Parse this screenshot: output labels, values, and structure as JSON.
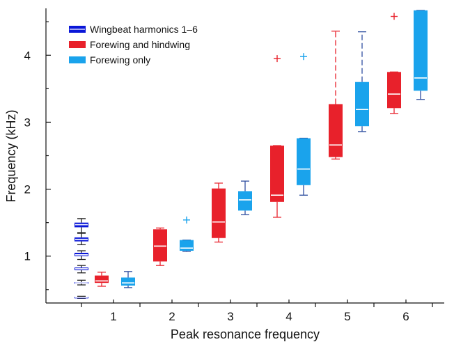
{
  "chart_data": {
    "type": "box",
    "xlabel": "Peak resonance frequency",
    "ylabel": "Frequency (kHz)",
    "ylim": [
      0.3,
      4.7
    ],
    "yticks": [
      1,
      2,
      3,
      4
    ],
    "xticks": [
      1,
      2,
      3,
      4,
      5,
      6
    ],
    "grid": false,
    "legend_position": "top-left",
    "series": [
      {
        "name": "Wingbeat harmonics 1–6",
        "color": "#0a17d8"
      },
      {
        "name": "Forewing and hindwing",
        "color": "#e8212b"
      },
      {
        "name": "Forewing only",
        "color": "#1aa3ec"
      }
    ],
    "harmonic_boxes": [
      {
        "harmonic": 1,
        "whisker_low": 0.37,
        "q1": 0.38,
        "median": 0.385,
        "q3": 0.39,
        "whisker_high": 0.4
      },
      {
        "harmonic": 2,
        "whisker_low": 0.57,
        "q1": 0.59,
        "median": 0.6,
        "q3": 0.61,
        "whisker_high": 0.64
      },
      {
        "harmonic": 3,
        "whisker_low": 0.75,
        "q1": 0.79,
        "median": 0.81,
        "q3": 0.83,
        "whisker_high": 0.86
      },
      {
        "harmonic": 4,
        "whisker_low": 0.95,
        "q1": 1.0,
        "median": 1.02,
        "q3": 1.05,
        "whisker_high": 1.08
      },
      {
        "harmonic": 5,
        "whisker_low": 1.17,
        "q1": 1.22,
        "median": 1.25,
        "q3": 1.28,
        "whisker_high": 1.34
      },
      {
        "harmonic": 6,
        "whisker_low": 1.35,
        "q1": 1.43,
        "median": 1.47,
        "q3": 1.5,
        "whisker_high": 1.56
      }
    ],
    "boxes": [
      {
        "series": "Forewing and hindwing",
        "x": 1,
        "whisker_low": 0.55,
        "q1": 0.6,
        "median": 0.63,
        "q3": 0.71,
        "whisker_high": 0.76,
        "outliers": []
      },
      {
        "series": "Forewing only",
        "x": 1,
        "whisker_low": 0.53,
        "q1": 0.56,
        "median": 0.6,
        "q3": 0.68,
        "whisker_high": 0.77,
        "outliers": []
      },
      {
        "series": "Forewing and hindwing",
        "x": 2,
        "whisker_low": 0.86,
        "q1": 0.92,
        "median": 1.15,
        "q3": 1.4,
        "whisker_high": 1.42,
        "outliers": []
      },
      {
        "series": "Forewing only",
        "x": 2,
        "whisker_low": 1.07,
        "q1": 1.08,
        "median": 1.12,
        "q3": 1.24,
        "whisker_high": 1.24,
        "outliers": [
          1.54
        ]
      },
      {
        "series": "Forewing and hindwing",
        "x": 3,
        "whisker_low": 1.21,
        "q1": 1.27,
        "median": 1.51,
        "q3": 2.01,
        "whisker_high": 2.09,
        "outliers": []
      },
      {
        "series": "Forewing only",
        "x": 3,
        "whisker_low": 1.62,
        "q1": 1.68,
        "median": 1.84,
        "q3": 1.97,
        "whisker_high": 2.12,
        "outliers": []
      },
      {
        "series": "Forewing and hindwing",
        "x": 4,
        "whisker_low": 1.58,
        "q1": 1.81,
        "median": 1.91,
        "q3": 2.65,
        "whisker_high": 2.65,
        "outliers": [
          3.95
        ]
      },
      {
        "series": "Forewing only",
        "x": 4,
        "whisker_low": 1.91,
        "q1": 2.06,
        "median": 2.3,
        "q3": 2.76,
        "whisker_high": 2.76,
        "outliers": [
          3.98
        ]
      },
      {
        "series": "Forewing and hindwing",
        "x": 5,
        "whisker_low": 2.45,
        "q1": 2.48,
        "median": 2.66,
        "q3": 3.27,
        "whisker_high": 4.36,
        "outliers": []
      },
      {
        "series": "Forewing only",
        "x": 5,
        "whisker_low": 2.86,
        "q1": 2.94,
        "median": 3.19,
        "q3": 3.6,
        "whisker_high": 4.35,
        "outliers": []
      },
      {
        "series": "Forewing and hindwing",
        "x": 6,
        "whisker_low": 3.13,
        "q1": 3.21,
        "median": 3.42,
        "q3": 3.75,
        "whisker_high": 3.75,
        "outliers": [
          4.58
        ]
      },
      {
        "series": "Forewing only",
        "x": 6,
        "whisker_low": 3.34,
        "q1": 3.47,
        "median": 3.66,
        "q3": 4.67,
        "whisker_high": 4.67,
        "outliers": []
      }
    ]
  }
}
